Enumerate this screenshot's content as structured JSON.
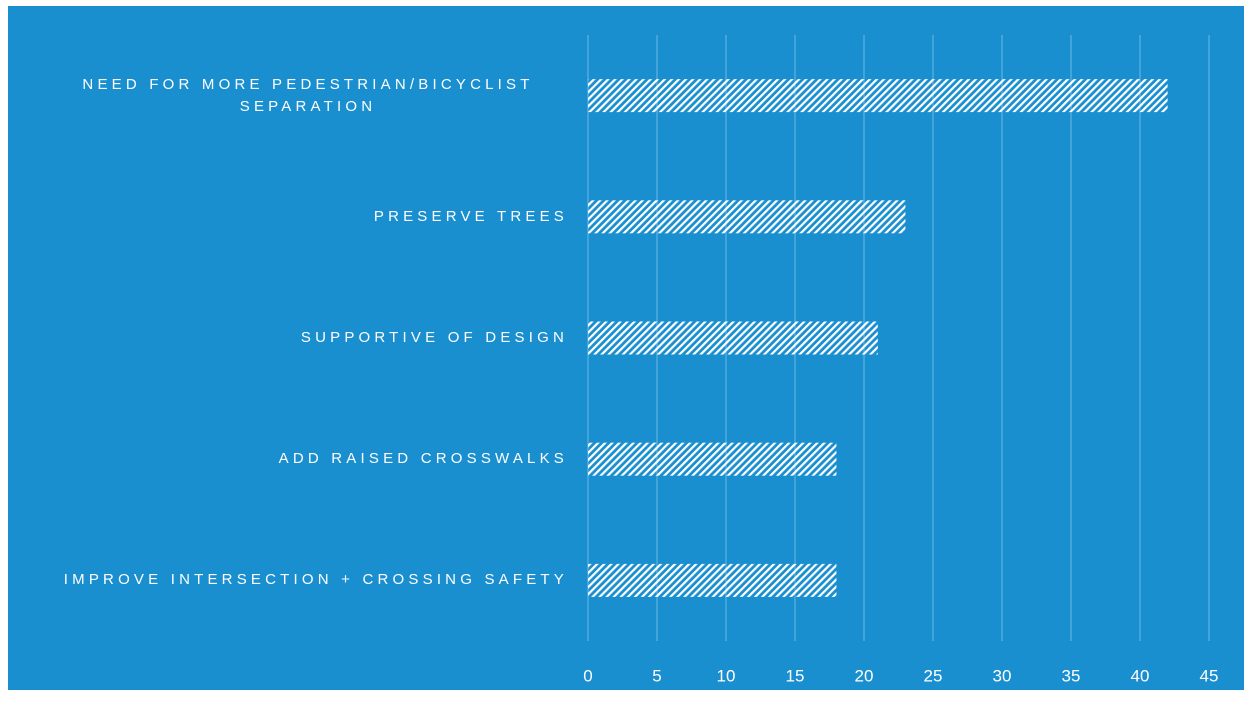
{
  "chart_data": {
    "type": "bar",
    "orientation": "horizontal",
    "categories": [
      "NEED FOR MORE PEDESTRIAN/BICYCLIST SEPARATION",
      "PRESERVE TREES",
      "SUPPORTIVE OF DESIGN",
      "ADD RAISED CROSSWALKS",
      "IMPROVE INTERSECTION + CROSSING SAFETY"
    ],
    "values": [
      42,
      23,
      21,
      18,
      18
    ],
    "color": "#ffffff",
    "hatch": true,
    "xlim": [
      0,
      45
    ],
    "xticks": [
      0,
      5,
      10,
      15,
      20,
      25,
      30,
      35,
      40,
      45
    ],
    "grid": true
  }
}
